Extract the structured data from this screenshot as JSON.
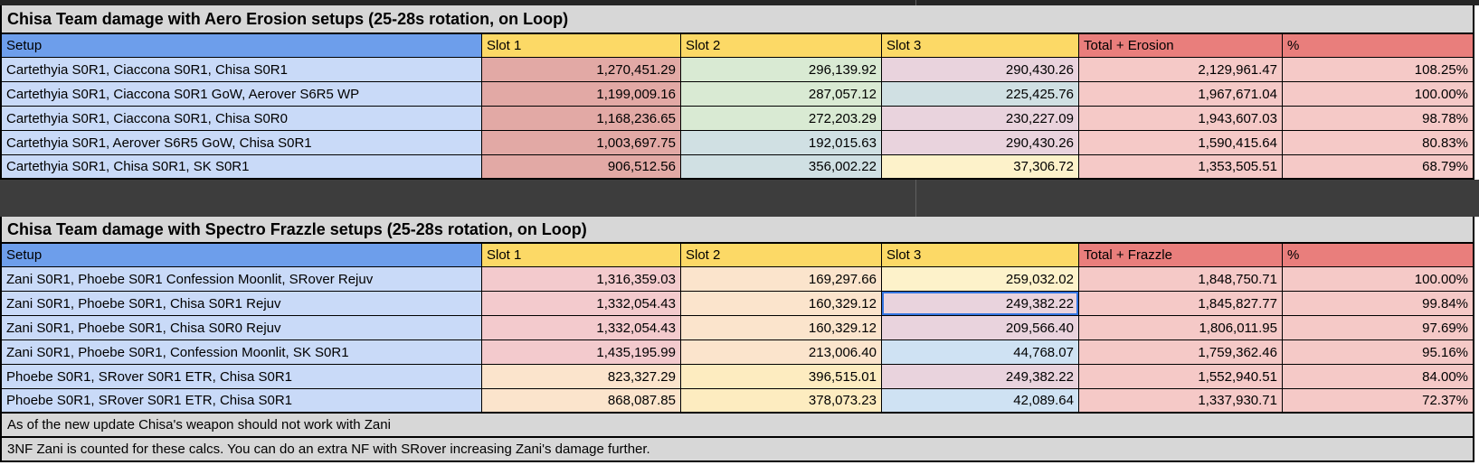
{
  "palette": {
    "header_blue": "#6d9eeb",
    "header_yellow": "#fcd966",
    "header_red": "#e97e7c",
    "cell_blue": "#c9daf8",
    "salmon": "#e2a9a5",
    "green": "#d9ead3",
    "cyan": "#d0e0e3",
    "lavender": "#e9d3dd",
    "light_yellow": "#fdf2ca",
    "gold": "#fdecc0",
    "peach": "#fbe4cc",
    "pink": "#f5c9c7",
    "pink2": "#f3cacd",
    "light_blue": "#cfe2f3",
    "title_gray": "#d7d7d7",
    "gap_dark": "#3d3d3d",
    "selection_blue": "#3374e0"
  },
  "tables": [
    {
      "title": "Chisa Team damage with Aero Erosion setups (25-28s rotation, on Loop)",
      "columns": [
        {
          "label": "Setup",
          "bg": "header_blue"
        },
        {
          "label": "Slot 1",
          "bg": "header_yellow"
        },
        {
          "label": "Slot 2",
          "bg": "header_yellow"
        },
        {
          "label": "Slot 3",
          "bg": "header_yellow"
        },
        {
          "label": "Total + Erosion",
          "bg": "header_red"
        },
        {
          "label": "%",
          "bg": "header_red"
        }
      ],
      "rows": [
        {
          "cells": [
            {
              "text": "Cartethyia S0R1, Ciaccona S0R1, Chisa S0R1",
              "bg": "cell_blue"
            },
            {
              "text": "1,270,451.29",
              "bg": "salmon"
            },
            {
              "text": "296,139.92",
              "bg": "green"
            },
            {
              "text": "290,430.26",
              "bg": "lavender"
            },
            {
              "text": "2,129,961.47",
              "bg": "pink"
            },
            {
              "text": "108.25%",
              "bg": "pink"
            }
          ]
        },
        {
          "cells": [
            {
              "text": "Cartethyia S0R1, Ciaccona S0R1 GoW, Aerover S6R5 WP",
              "bg": "cell_blue"
            },
            {
              "text": "1,199,009.16",
              "bg": "salmon"
            },
            {
              "text": "287,057.12",
              "bg": "green"
            },
            {
              "text": "225,425.76",
              "bg": "cyan"
            },
            {
              "text": "1,967,671.04",
              "bg": "pink"
            },
            {
              "text": "100.00%",
              "bg": "pink"
            }
          ]
        },
        {
          "cells": [
            {
              "text": "Cartethyia S0R1, Ciaccona S0R1, Chisa S0R0",
              "bg": "cell_blue"
            },
            {
              "text": "1,168,236.65",
              "bg": "salmon"
            },
            {
              "text": "272,203.29",
              "bg": "green"
            },
            {
              "text": "230,227.09",
              "bg": "lavender"
            },
            {
              "text": "1,943,607.03",
              "bg": "pink"
            },
            {
              "text": "98.78%",
              "bg": "pink"
            }
          ]
        },
        {
          "cells": [
            {
              "text": "Cartethyia S0R1, Aerover S6R5 GoW, Chisa S0R1",
              "bg": "cell_blue"
            },
            {
              "text": "1,003,697.75",
              "bg": "salmon"
            },
            {
              "text": "192,015.63",
              "bg": "cyan"
            },
            {
              "text": "290,430.26",
              "bg": "lavender"
            },
            {
              "text": "1,590,415.64",
              "bg": "pink"
            },
            {
              "text": "80.83%",
              "bg": "pink"
            }
          ]
        },
        {
          "cells": [
            {
              "text": "Cartethyia S0R1, Chisa S0R1, SK S0R1",
              "bg": "cell_blue"
            },
            {
              "text": "906,512.56",
              "bg": "salmon"
            },
            {
              "text": "356,002.22",
              "bg": "cyan"
            },
            {
              "text": "37,306.72",
              "bg": "light_yellow"
            },
            {
              "text": "1,353,505.51",
              "bg": "pink"
            },
            {
              "text": "68.79%",
              "bg": "pink"
            }
          ]
        }
      ]
    },
    {
      "title": "Chisa Team damage with Spectro Frazzle setups (25-28s rotation, on Loop)",
      "columns": [
        {
          "label": "Setup",
          "bg": "header_blue"
        },
        {
          "label": "Slot 1",
          "bg": "header_yellow"
        },
        {
          "label": "Slot 2",
          "bg": "header_yellow"
        },
        {
          "label": "Slot 3",
          "bg": "header_yellow"
        },
        {
          "label": "Total + Frazzle",
          "bg": "header_red"
        },
        {
          "label": "%",
          "bg": "header_red"
        }
      ],
      "selected": [
        1,
        3
      ],
      "rows": [
        {
          "cells": [
            {
              "text": "Zani S0R1, Phoebe S0R1 Confession Moonlit, SRover Rejuv",
              "bg": "cell_blue"
            },
            {
              "text": "1,316,359.03",
              "bg": "pink2"
            },
            {
              "text": "169,297.66",
              "bg": "peach"
            },
            {
              "text": "259,032.02",
              "bg": "light_yellow"
            },
            {
              "text": "1,848,750.71",
              "bg": "pink"
            },
            {
              "text": "100.00%",
              "bg": "pink"
            }
          ]
        },
        {
          "cells": [
            {
              "text": "Zani S0R1, Phoebe S0R1, Chisa S0R1 Rejuv",
              "bg": "cell_blue"
            },
            {
              "text": "1,332,054.43",
              "bg": "pink2"
            },
            {
              "text": "160,329.12",
              "bg": "peach"
            },
            {
              "text": "249,382.22",
              "bg": "lavender"
            },
            {
              "text": "1,845,827.77",
              "bg": "pink"
            },
            {
              "text": "99.84%",
              "bg": "pink"
            }
          ]
        },
        {
          "cells": [
            {
              "text": "Zani S0R1, Phoebe S0R1, Chisa S0R0 Rejuv",
              "bg": "cell_blue"
            },
            {
              "text": "1,332,054.43",
              "bg": "pink2"
            },
            {
              "text": "160,329.12",
              "bg": "peach"
            },
            {
              "text": "209,566.40",
              "bg": "lavender"
            },
            {
              "text": "1,806,011.95",
              "bg": "pink"
            },
            {
              "text": "97.69%",
              "bg": "pink"
            }
          ]
        },
        {
          "cells": [
            {
              "text": "Zani S0R1, Phoebe S0R1, Confession Moonlit, SK S0R1",
              "bg": "cell_blue"
            },
            {
              "text": "1,435,195.99",
              "bg": "pink2"
            },
            {
              "text": "213,006.40",
              "bg": "peach"
            },
            {
              "text": "44,768.07",
              "bg": "light_blue"
            },
            {
              "text": "1,759,362.46",
              "bg": "pink"
            },
            {
              "text": "95.16%",
              "bg": "pink"
            }
          ]
        },
        {
          "cells": [
            {
              "text": "Phoebe S0R1, SRover S0R1 ETR, Chisa S0R1",
              "bg": "cell_blue"
            },
            {
              "text": "823,327.29",
              "bg": "peach"
            },
            {
              "text": "396,515.01",
              "bg": "gold"
            },
            {
              "text": "249,382.22",
              "bg": "lavender"
            },
            {
              "text": "1,552,940.51",
              "bg": "pink"
            },
            {
              "text": "84.00%",
              "bg": "pink"
            }
          ]
        },
        {
          "cells": [
            {
              "text": "Phoebe S0R1, SRover S0R1 ETR, Chisa S0R1",
              "bg": "cell_blue"
            },
            {
              "text": "868,087.85",
              "bg": "peach"
            },
            {
              "text": "378,073.23",
              "bg": "gold"
            },
            {
              "text": "42,089.64",
              "bg": "light_blue"
            },
            {
              "text": "1,337,930.71",
              "bg": "pink"
            },
            {
              "text": "72.37%",
              "bg": "pink"
            }
          ]
        }
      ]
    }
  ],
  "notes": [
    "As of the new update Chisa's weapon should not work with Zani",
    "3NF Zani is counted for these calcs. You can do an extra NF with SRover increasing Zani's damage further."
  ]
}
